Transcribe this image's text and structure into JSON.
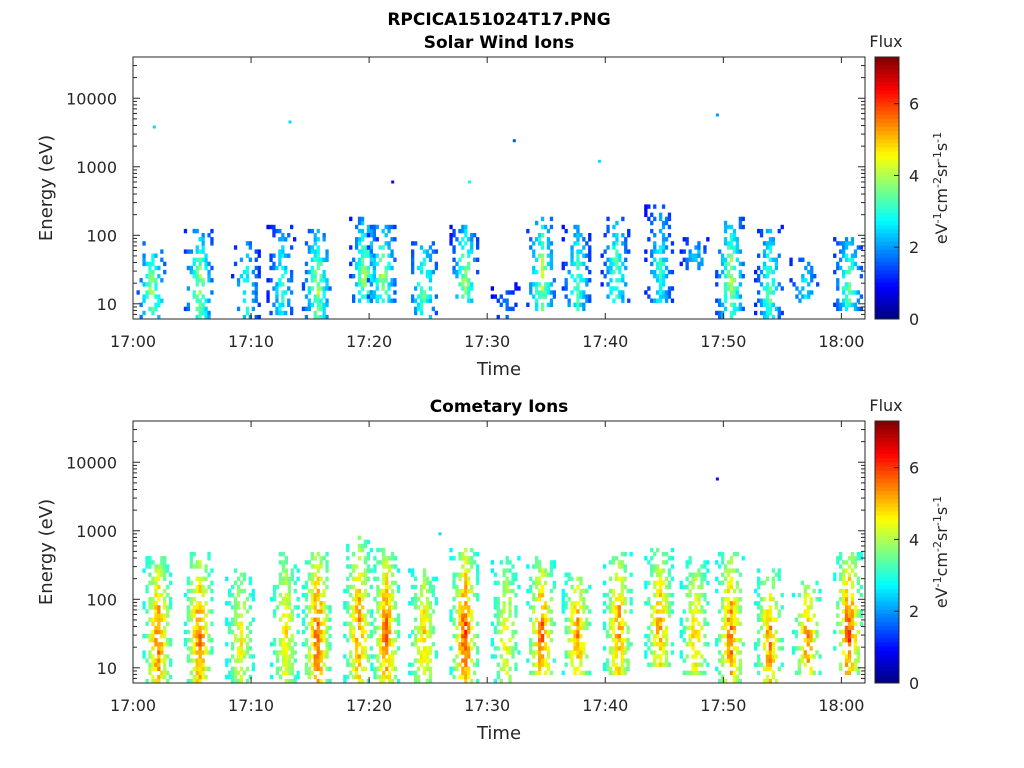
{
  "figure": {
    "title": "RPCICA151024T17.PNG"
  },
  "chart_data": [
    {
      "type": "heatmap",
      "title": "Solar Wind Ions",
      "xlabel": "Time",
      "ylabel": "Energy (eV)",
      "x_ticks": [
        "17:00",
        "17:10",
        "17:20",
        "17:30",
        "17:40",
        "17:50",
        "18:00"
      ],
      "y_ticks": [
        "10",
        "100",
        "1000",
        "10000"
      ],
      "y_scale": "log",
      "ylim": [
        6,
        40000
      ],
      "xlim_minutes": [
        0,
        62
      ],
      "colorbar": {
        "title": "Flux",
        "label": "eV-1cm-2sr-1s-1",
        "ticks": [
          0,
          2,
          4,
          6
        ],
        "range": [
          0,
          7.3
        ],
        "colormap": "jet"
      },
      "bursts": [
        {
          "t": 1.5,
          "emin": 6,
          "emax": 80,
          "fmin": 1.0,
          "fmax": 4.5,
          "density": 0.55
        },
        {
          "t": 5.5,
          "emin": 6,
          "emax": 120,
          "fmin": 1.0,
          "fmax": 4.5,
          "density": 0.5
        },
        {
          "t": 9.5,
          "emin": 6,
          "emax": 100,
          "fmin": 0.8,
          "fmax": 3.5,
          "density": 0.3
        },
        {
          "t": 12.5,
          "emin": 6,
          "emax": 150,
          "fmin": 0.8,
          "fmax": 3.5,
          "density": 0.45
        },
        {
          "t": 15.5,
          "emin": 6,
          "emax": 120,
          "fmin": 1.0,
          "fmax": 4.5,
          "density": 0.6
        },
        {
          "t": 19.5,
          "emin": 10,
          "emax": 200,
          "fmin": 0.8,
          "fmax": 4.5,
          "density": 0.55
        },
        {
          "t": 21.0,
          "emin": 10,
          "emax": 150,
          "fmin": 1.0,
          "fmax": 4.5,
          "density": 0.55
        },
        {
          "t": 24.5,
          "emin": 6,
          "emax": 100,
          "fmin": 1.0,
          "fmax": 4.0,
          "density": 0.45
        },
        {
          "t": 28.0,
          "emin": 10,
          "emax": 150,
          "fmin": 0.8,
          "fmax": 4.5,
          "density": 0.6
        },
        {
          "t": 31.5,
          "emin": 6,
          "emax": 20,
          "fmin": 0.8,
          "fmax": 2.0,
          "density": 0.25
        },
        {
          "t": 34.5,
          "emin": 8,
          "emax": 200,
          "fmin": 1.0,
          "fmax": 4.5,
          "density": 0.55
        },
        {
          "t": 37.5,
          "emin": 8,
          "emax": 150,
          "fmin": 0.8,
          "fmax": 4.0,
          "density": 0.5
        },
        {
          "t": 40.8,
          "emin": 10,
          "emax": 200,
          "fmin": 0.8,
          "fmax": 4.0,
          "density": 0.5
        },
        {
          "t": 44.5,
          "emin": 10,
          "emax": 300,
          "fmin": 0.8,
          "fmax": 3.5,
          "density": 0.55
        },
        {
          "t": 47.5,
          "emin": 30,
          "emax": 100,
          "fmin": 0.8,
          "fmax": 3.0,
          "density": 0.35
        },
        {
          "t": 50.5,
          "emin": 6,
          "emax": 200,
          "fmin": 1.0,
          "fmax": 4.5,
          "density": 0.55
        },
        {
          "t": 53.8,
          "emin": 6,
          "emax": 150,
          "fmin": 0.8,
          "fmax": 4.0,
          "density": 0.5
        },
        {
          "t": 56.8,
          "emin": 10,
          "emax": 50,
          "fmin": 1.0,
          "fmax": 3.0,
          "density": 0.3
        },
        {
          "t": 60.5,
          "emin": 8,
          "emax": 100,
          "fmin": 1.0,
          "fmax": 4.0,
          "density": 0.55
        }
      ],
      "isolated_points": [
        {
          "t": 1.8,
          "e": 3800,
          "f": 2.5
        },
        {
          "t": 13.3,
          "e": 4500,
          "f": 2.5
        },
        {
          "t": 32.3,
          "e": 2400,
          "f": 1.5
        },
        {
          "t": 39.5,
          "e": 1200,
          "f": 2.5
        },
        {
          "t": 49.5,
          "e": 5700,
          "f": 2.0
        },
        {
          "t": 22.0,
          "e": 600,
          "f": 1.0
        },
        {
          "t": 28.5,
          "e": 600,
          "f": 2.8
        }
      ]
    },
    {
      "type": "heatmap",
      "title": "Cometary Ions",
      "xlabel": "Time",
      "ylabel": "Energy (eV)",
      "x_ticks": [
        "17:00",
        "17:10",
        "17:20",
        "17:30",
        "17:40",
        "17:50",
        "18:00"
      ],
      "y_ticks": [
        "10",
        "100",
        "1000",
        "10000"
      ],
      "y_scale": "log",
      "ylim": [
        6,
        40000
      ],
      "xlim_minutes": [
        0,
        62
      ],
      "colorbar": {
        "title": "Flux",
        "label": "eV-1cm-2sr-1s-1",
        "ticks": [
          0,
          2,
          4,
          6
        ],
        "range": [
          0,
          7.3
        ],
        "colormap": "jet"
      },
      "bursts": [
        {
          "t": 2.0,
          "emin": 6,
          "emax": 400,
          "fmin": 2.5,
          "fmax": 6.2,
          "density": 0.75
        },
        {
          "t": 5.5,
          "emin": 6,
          "emax": 500,
          "fmin": 2.5,
          "fmax": 6.2,
          "density": 0.75
        },
        {
          "t": 9.0,
          "emin": 6,
          "emax": 300,
          "fmin": 2.5,
          "fmax": 5.0,
          "density": 0.55
        },
        {
          "t": 12.8,
          "emin": 6,
          "emax": 500,
          "fmin": 2.5,
          "fmax": 5.2,
          "density": 0.6
        },
        {
          "t": 15.5,
          "emin": 6,
          "emax": 500,
          "fmin": 2.5,
          "fmax": 6.5,
          "density": 0.75
        },
        {
          "t": 19.0,
          "emin": 6,
          "emax": 800,
          "fmin": 2.5,
          "fmax": 6.0,
          "density": 0.7
        },
        {
          "t": 21.3,
          "emin": 6,
          "emax": 600,
          "fmin": 2.5,
          "fmax": 6.2,
          "density": 0.75
        },
        {
          "t": 24.5,
          "emin": 6,
          "emax": 300,
          "fmin": 2.5,
          "fmax": 5.5,
          "density": 0.65
        },
        {
          "t": 28.0,
          "emin": 6,
          "emax": 600,
          "fmin": 2.5,
          "fmax": 6.5,
          "density": 0.8
        },
        {
          "t": 31.5,
          "emin": 6,
          "emax": 400,
          "fmin": 2.5,
          "fmax": 5.0,
          "density": 0.5
        },
        {
          "t": 34.5,
          "emin": 8,
          "emax": 400,
          "fmin": 2.5,
          "fmax": 6.3,
          "density": 0.7
        },
        {
          "t": 37.5,
          "emin": 8,
          "emax": 300,
          "fmin": 2.5,
          "fmax": 6.0,
          "density": 0.65
        },
        {
          "t": 41.0,
          "emin": 8,
          "emax": 500,
          "fmin": 2.5,
          "fmax": 6.0,
          "density": 0.7
        },
        {
          "t": 44.5,
          "emin": 10,
          "emax": 600,
          "fmin": 2.5,
          "fmax": 5.8,
          "density": 0.7
        },
        {
          "t": 47.5,
          "emin": 8,
          "emax": 400,
          "fmin": 2.5,
          "fmax": 5.5,
          "density": 0.6
        },
        {
          "t": 50.5,
          "emin": 6,
          "emax": 500,
          "fmin": 2.5,
          "fmax": 6.2,
          "density": 0.75
        },
        {
          "t": 53.8,
          "emin": 6,
          "emax": 300,
          "fmin": 2.5,
          "fmax": 6.0,
          "density": 0.65
        },
        {
          "t": 57.0,
          "emin": 8,
          "emax": 200,
          "fmin": 2.5,
          "fmax": 6.0,
          "density": 0.55
        },
        {
          "t": 60.5,
          "emin": 8,
          "emax": 500,
          "fmin": 2.5,
          "fmax": 6.5,
          "density": 0.75
        }
      ],
      "isolated_points": [
        {
          "t": 49.5,
          "e": 5700,
          "f": 1.0
        },
        {
          "t": 26.0,
          "e": 900,
          "f": 2.5
        }
      ]
    }
  ]
}
